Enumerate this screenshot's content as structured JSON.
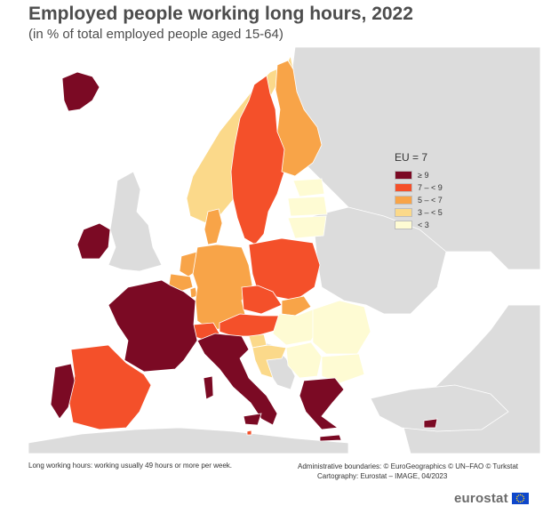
{
  "title": "Employed people working long hours, 2022",
  "subtitle": "(in % of total employed people aged 15-64)",
  "legend": {
    "title": "EU = 7",
    "classes": [
      {
        "label": "≥ 9",
        "color": "#7b0a24"
      },
      {
        "label": "7 – < 9",
        "color": "#f4502a"
      },
      {
        "label": "5 – < 7",
        "color": "#f8a448"
      },
      {
        "label": "3 – < 5",
        "color": "#fbd98a"
      },
      {
        "label": "< 3",
        "color": "#fefbd3"
      }
    ]
  },
  "map": {
    "sea_color": "#ffffff",
    "land_color": "#dcdcdc",
    "regions": [
      {
        "name": "Iceland",
        "class": "≥ 9"
      },
      {
        "name": "Ireland",
        "class": "≥ 9"
      },
      {
        "name": "Norway",
        "class": "3 – < 5"
      },
      {
        "name": "Sweden",
        "class": "7 – < 9"
      },
      {
        "name": "Finland",
        "class": "5 – < 7"
      },
      {
        "name": "Estonia",
        "class": "< 3"
      },
      {
        "name": "Latvia",
        "class": "< 3"
      },
      {
        "name": "Lithuania",
        "class": "< 3"
      },
      {
        "name": "Denmark",
        "class": "5 – < 7"
      },
      {
        "name": "Netherlands",
        "class": "5 – < 7"
      },
      {
        "name": "Belgium",
        "class": "5 – < 7"
      },
      {
        "name": "Luxembourg",
        "class": "5 – < 7"
      },
      {
        "name": "Germany",
        "class": "5 – < 7"
      },
      {
        "name": "Poland",
        "class": "7 – < 9"
      },
      {
        "name": "Czechia",
        "class": "7 – < 9"
      },
      {
        "name": "Slovakia",
        "class": "5 – < 7"
      },
      {
        "name": "Austria",
        "class": "7 – < 9"
      },
      {
        "name": "Switzerland",
        "class": "7 – < 9"
      },
      {
        "name": "Hungary",
        "class": "< 3"
      },
      {
        "name": "Slovenia",
        "class": "3 – < 5"
      },
      {
        "name": "Croatia",
        "class": "3 – < 5"
      },
      {
        "name": "Romania",
        "class": "< 3"
      },
      {
        "name": "Bulgaria",
        "class": "< 3"
      },
      {
        "name": "Serbia",
        "class": "< 3"
      },
      {
        "name": "France",
        "class": "≥ 9"
      },
      {
        "name": "Italy",
        "class": "≥ 9"
      },
      {
        "name": "Spain",
        "class": "7 – < 9"
      },
      {
        "name": "Portugal",
        "class": "≥ 9"
      },
      {
        "name": "Greece",
        "class": "≥ 9"
      },
      {
        "name": "Cyprus",
        "class": "≥ 9"
      },
      {
        "name": "Malta",
        "class": "7 – < 9"
      }
    ]
  },
  "footnote": "Long working hours: working usually 49 hours or more per week.",
  "credits": {
    "line1": "Administrative boundaries: © EuroGeographics © UN–FAO © Turkstat",
    "line2": "Cartography: Eurostat – IMAGE, 04/2023"
  },
  "logo": {
    "text": "eurostat",
    "flag_color": "#0e47cb",
    "star_color": "#ffd617"
  }
}
